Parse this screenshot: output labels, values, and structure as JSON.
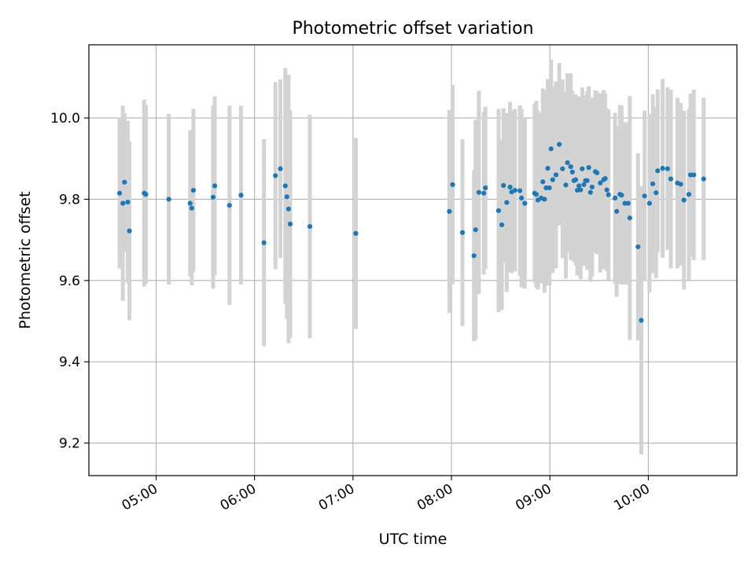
{
  "chart_data": {
    "type": "scatter",
    "title": "Photometric offset variation",
    "xlabel": "UTC time",
    "ylabel": "Photometric offset",
    "x_unit": "UTC time (HH:MM)",
    "xlim": [
      "04:19",
      "10:54"
    ],
    "ylim": [
      9.12,
      10.18
    ],
    "x_ticks": [
      "05:00",
      "06:00",
      "07:00",
      "08:00",
      "09:00",
      "10:00"
    ],
    "y_ticks": [
      9.2,
      9.4,
      9.6,
      9.8,
      10.0
    ],
    "y_tick_labels": [
      "9.2",
      "9.4",
      "9.6",
      "9.8",
      "10.0"
    ],
    "grid": true,
    "legend": "none",
    "point_color": "#1f77b4",
    "errorbar_color": "#d3d3d3",
    "series": [
      {
        "x": [
          "04:37",
          "04:39",
          "04:40",
          "04:42",
          "04:43",
          "04:52",
          "04:53",
          "05:07",
          "05:20",
          "05:21",
          "05:22",
          "05:34",
          "05:35",
          "05:44",
          "05:51",
          "06:05",
          "06:12",
          "06:15",
          "06:18",
          "06:19",
          "06:20",
          "06:21",
          "06:33",
          "07:01",
          "07:58",
          "08:00",
          "08:06",
          "08:13",
          "08:14",
          "08:16",
          "08:19",
          "08:20",
          "08:28",
          "08:30",
          "08:31",
          "08:33",
          "08:35",
          "08:36",
          "08:38",
          "08:41",
          "08:42",
          "08:44",
          "08:50",
          "08:51",
          "08:52",
          "08:54",
          "08:55",
          "08:56",
          "08:57",
          "08:58",
          "08:59",
          "09:00",
          "09:01",
          "09:03",
          "09:05",
          "09:07",
          "09:09",
          "09:10",
          "09:12",
          "09:13",
          "09:14",
          "09:15",
          "09:16",
          "09:17",
          "09:18",
          "09:19",
          "09:20",
          "09:21",
          "09:22",
          "09:23",
          "09:24",
          "09:25",
          "09:27",
          "09:28",
          "09:30",
          "09:32",
          "09:33",
          "09:34",
          "09:35",
          "09:39",
          "09:40",
          "09:42",
          "09:43",
          "09:45",
          "09:47",
          "09:48",
          "09:53",
          "09:55",
          "09:57",
          "10:00",
          "10:02",
          "10:04",
          "10:05",
          "10:08",
          "10:11",
          "10:13",
          "10:17",
          "10:19",
          "10:21",
          "10:24",
          "10:25",
          "10:27",
          "10:33"
        ],
        "y": [
          9.815,
          9.79,
          9.842,
          9.793,
          9.722,
          9.815,
          9.812,
          9.8,
          9.79,
          9.778,
          9.822,
          9.805,
          9.833,
          9.785,
          9.81,
          9.693,
          9.858,
          9.875,
          9.833,
          9.806,
          9.776,
          9.739,
          9.733,
          9.716,
          9.77,
          9.836,
          9.718,
          9.661,
          9.725,
          9.817,
          9.815,
          9.828,
          9.772,
          9.737,
          9.834,
          9.792,
          9.83,
          9.818,
          9.822,
          9.821,
          9.803,
          9.79,
          9.815,
          9.812,
          9.798,
          9.803,
          9.843,
          9.8,
          9.828,
          9.876,
          9.828,
          9.924,
          9.848,
          9.86,
          9.935,
          9.875,
          9.835,
          9.89,
          9.88,
          9.867,
          9.846,
          9.848,
          9.822,
          9.833,
          9.823,
          9.875,
          9.836,
          9.846,
          9.846,
          9.878,
          9.817,
          9.83,
          9.868,
          9.865,
          9.84,
          9.848,
          9.851,
          9.823,
          9.811,
          9.803,
          9.77,
          9.812,
          9.81,
          9.79,
          9.79,
          9.754,
          9.683,
          9.502,
          9.808,
          9.79,
          9.838,
          9.816,
          9.87,
          9.876,
          9.875,
          9.85,
          9.84,
          9.837,
          9.798,
          9.812,
          9.86,
          9.86,
          9.85
        ],
        "yerr": [
          0.185,
          0.24,
          0.17,
          0.2,
          0.22,
          0.23,
          0.22,
          0.21,
          0.18,
          0.19,
          0.2,
          0.225,
          0.22,
          0.245,
          0.22,
          0.255,
          0.23,
          0.22,
          0.29,
          0.3,
          0.33,
          0.28,
          0.275,
          0.235,
          0.25,
          0.245,
          0.23,
          0.21,
          0.27,
          0.25,
          0.2,
          0.2,
          0.25,
          0.21,
          0.19,
          0.22,
          0.21,
          0.2,
          0.2,
          0.21,
          0.22,
          0.21,
          0.22,
          0.23,
          0.22,
          0.21,
          0.23,
          0.23,
          0.24,
          0.22,
          0.24,
          0.22,
          0.23,
          0.23,
          0.2,
          0.22,
          0.23,
          0.22,
          0.23,
          0.2,
          0.2,
          0.21,
          0.21,
          0.22,
          0.22,
          0.2,
          0.2,
          0.21,
          0.22,
          0.2,
          0.22,
          0.22,
          0.2,
          0.2,
          0.22,
          0.22,
          0.21,
          0.2,
          0.21,
          0.21,
          0.21,
          0.22,
          0.22,
          0.2,
          0.2,
          0.3,
          0.23,
          0.33,
          0.21,
          0.22,
          0.22,
          0.21,
          0.2,
          0.22,
          0.2,
          0.22,
          0.21,
          0.2,
          0.22,
          0.21,
          0.2,
          0.21,
          0.2
        ]
      }
    ]
  }
}
